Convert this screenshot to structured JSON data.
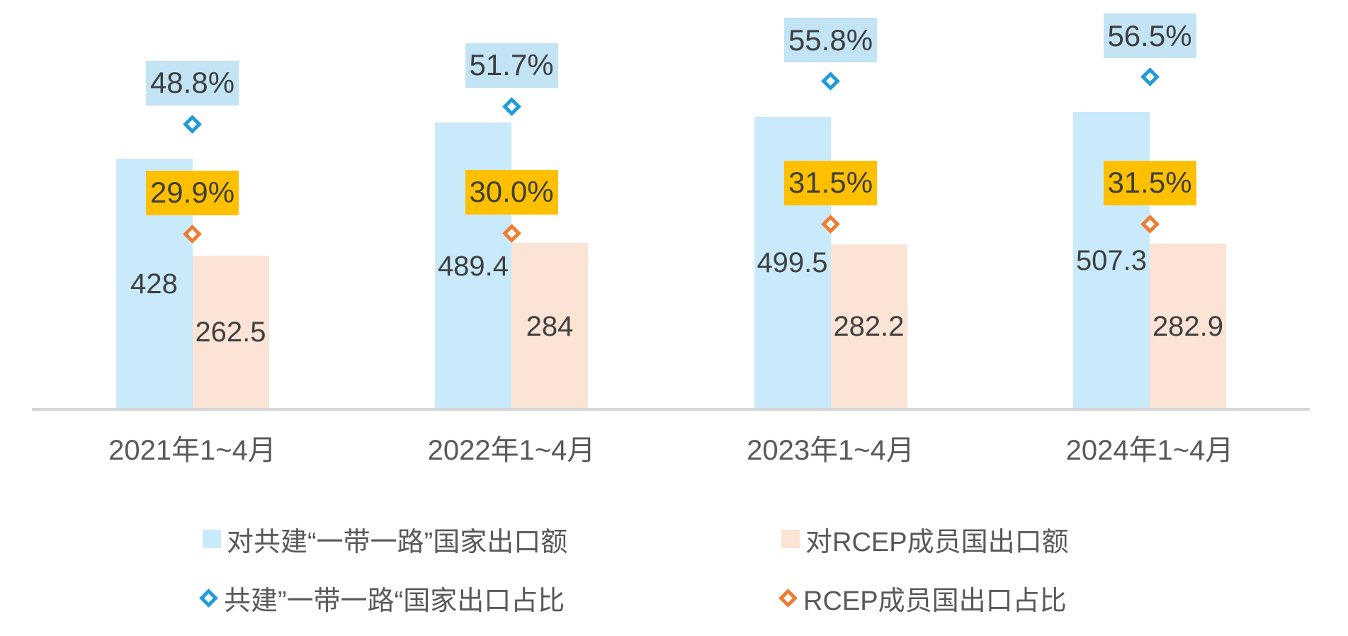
{
  "chart_data": {
    "type": "bar",
    "subtype": "grouped-bars-with-percent-markers",
    "title": "",
    "categories": [
      "2021年1~4月",
      "2022年1~4月",
      "2023年1~4月",
      "2024年1~4月"
    ],
    "series": [
      {
        "name": "对共建“一带一路”国家出口额",
        "type": "bar",
        "color": "#c9eafa",
        "values": [
          428,
          489.4,
          499.5,
          507.3
        ]
      },
      {
        "name": "对RCEP成员国出口额",
        "type": "bar",
        "color": "#fbe4d5",
        "values": [
          262.5,
          284,
          282.2,
          282.9
        ]
      },
      {
        "name": "共建”一带一路“国家出口占比",
        "type": "scatter",
        "marker": "hollow-diamond",
        "color": "#1f9cd9",
        "values": [
          48.8,
          51.7,
          55.8,
          56.5
        ],
        "unit": "%"
      },
      {
        "name": "RCEP成员国出口占比",
        "type": "scatter",
        "marker": "hollow-diamond",
        "color": "#ed7d31",
        "values": [
          29.9,
          30.0,
          31.5,
          31.5
        ],
        "unit": "%"
      }
    ],
    "groups": [
      {
        "label": "2021年1~4月",
        "belt_value": 428,
        "belt_label": "428",
        "rcep_value": 262.5,
        "rcep_label": "262.5",
        "belt_pct": 48.8,
        "belt_pct_label": "48.8%",
        "rcep_pct": 29.9,
        "rcep_pct_label": "29.9%"
      },
      {
        "label": "2022年1~4月",
        "belt_value": 489.4,
        "belt_label": "489.4",
        "rcep_value": 284,
        "rcep_label": "284",
        "belt_pct": 51.7,
        "belt_pct_label": "51.7%",
        "rcep_pct": 30.0,
        "rcep_pct_label": "30.0%"
      },
      {
        "label": "2023年1~4月",
        "belt_value": 499.5,
        "belt_label": "499.5",
        "rcep_value": 282.2,
        "rcep_label": "282.2",
        "belt_pct": 55.8,
        "belt_pct_label": "55.8%",
        "rcep_pct": 31.5,
        "rcep_pct_label": "31.5%"
      },
      {
        "label": "2024年1~4月",
        "belt_value": 507.3,
        "belt_label": "507.3",
        "rcep_value": 282.9,
        "rcep_label": "282.9",
        "belt_pct": 56.5,
        "belt_pct_label": "56.5%",
        "rcep_pct": 31.5,
        "rcep_pct_label": "31.5%"
      }
    ],
    "grid": false,
    "y_axis_visible": false,
    "legend_position": "bottom"
  },
  "colors": {
    "belt_bar": "#c9eafa",
    "rcep_bar": "#fbe4d5",
    "belt_pct_box": "#c3e4f4",
    "rcep_pct_box": "#ffc000",
    "belt_marker": "#1f9cd9",
    "rcep_marker": "#ed7d31",
    "value_text": "#404040",
    "axis_text": "#595959",
    "axis_line": "#d6d6d6"
  },
  "legend": {
    "items": [
      {
        "label": "对共建“一带一路”国家出口额",
        "swatch": "square",
        "color": "#c9eafa"
      },
      {
        "label": "对RCEP成员国出口额",
        "swatch": "square",
        "color": "#fbe4d5"
      },
      {
        "label": "共建”一带一路“国家出口占比",
        "swatch": "hollow-diamond",
        "color": "#1f9cd9"
      },
      {
        "label": "RCEP成员国出口占比",
        "swatch": "hollow-diamond",
        "color": "#ed7d31"
      }
    ]
  }
}
